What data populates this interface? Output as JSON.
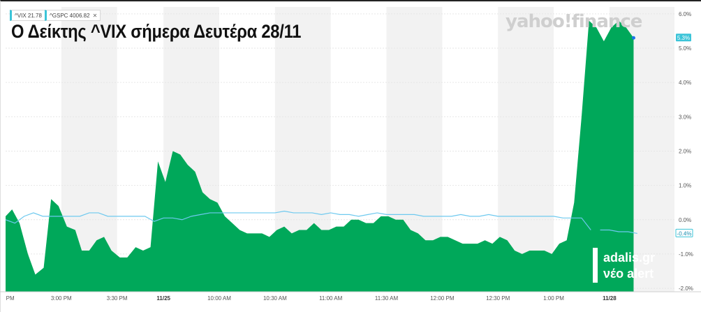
{
  "headline": "Ο Δείκτης ^VIX σήμερα Δευτέρα 28/11",
  "watermark": "yahoo!finance",
  "chips": [
    {
      "label": "^VIX 21.78",
      "color": "#3bc4d8",
      "closable": false
    },
    {
      "label": "^GSPC 4006.82",
      "color": "#5bc8e8",
      "closable": true
    }
  ],
  "brand": {
    "line1": "adalis.gr",
    "line2": "νέο alert"
  },
  "colors": {
    "area": "#00a85a",
    "line": "#6ec9ef",
    "band": "#f2f2f2",
    "vix_tag": "#3bc4d8",
    "gspc_tag": "#3bc4d8"
  },
  "chart_data": {
    "type": "area",
    "y_tick_labels": [
      "6.0%",
      "5.0%",
      "4.0%",
      "3.0%",
      "2.0%",
      "1.0%",
      "0.0%",
      "-1.0%",
      "-2.0%"
    ],
    "y_ticks": [
      6,
      5,
      4,
      3,
      2,
      1,
      0,
      -1,
      -2
    ],
    "ylim": [
      -2.1,
      6.2
    ],
    "x_tick_labels": [
      {
        "label": "PM",
        "x": 0.5,
        "bold": false
      },
      {
        "label": "3:00 PM",
        "x": 6,
        "bold": false
      },
      {
        "label": "3:30 PM",
        "x": 12,
        "bold": false
      },
      {
        "label": "11/25",
        "x": 17,
        "bold": true
      },
      {
        "label": "10:00 AM",
        "x": 23,
        "bold": false
      },
      {
        "label": "10:30 AM",
        "x": 29,
        "bold": false
      },
      {
        "label": "11:00 AM",
        "x": 35,
        "bold": false
      },
      {
        "label": "11:30 AM",
        "x": 41,
        "bold": false
      },
      {
        "label": "12:00 PM",
        "x": 47,
        "bold": false
      },
      {
        "label": "12:30 PM",
        "x": 53,
        "bold": false
      },
      {
        "label": "1:00 PM",
        "x": 59,
        "bold": false
      },
      {
        "label": "11/28",
        "x": 65,
        "bold": true
      }
    ],
    "xlim": [
      0,
      72
    ],
    "series": [
      {
        "name": "^VIX",
        "end_label": "5.3%",
        "points": [
          [
            0,
            0.1
          ],
          [
            0.7,
            0.3
          ],
          [
            1.5,
            -0.1
          ],
          [
            2.4,
            -1.0
          ],
          [
            3.2,
            -1.6
          ],
          [
            4.1,
            -1.4
          ],
          [
            4.9,
            0.6
          ],
          [
            5.7,
            0.4
          ],
          [
            6.6,
            -0.2
          ],
          [
            7.5,
            -0.3
          ],
          [
            8.2,
            -0.9
          ],
          [
            9.0,
            -0.9
          ],
          [
            9.8,
            -0.6
          ],
          [
            10.6,
            -0.5
          ],
          [
            11.4,
            -0.9
          ],
          [
            12.3,
            -1.1
          ],
          [
            13.1,
            -1.1
          ],
          [
            14.0,
            -0.8
          ],
          [
            14.8,
            -0.9
          ],
          [
            15.6,
            -0.8
          ],
          [
            16.4,
            1.7
          ],
          [
            17.2,
            1.1
          ],
          [
            18.0,
            2.0
          ],
          [
            18.8,
            1.9
          ],
          [
            19.6,
            1.6
          ],
          [
            20.4,
            1.4
          ],
          [
            21.2,
            0.8
          ],
          [
            22.0,
            0.6
          ],
          [
            22.8,
            0.5
          ],
          [
            23.6,
            0.1
          ],
          [
            24.4,
            -0.1
          ],
          [
            25.2,
            -0.3
          ],
          [
            26.0,
            -0.4
          ],
          [
            26.8,
            -0.4
          ],
          [
            27.6,
            -0.4
          ],
          [
            28.4,
            -0.5
          ],
          [
            29.2,
            -0.3
          ],
          [
            30.0,
            -0.2
          ],
          [
            30.8,
            -0.4
          ],
          [
            31.6,
            -0.3
          ],
          [
            32.4,
            -0.3
          ],
          [
            33.2,
            -0.1
          ],
          [
            34.0,
            -0.3
          ],
          [
            34.8,
            -0.3
          ],
          [
            35.6,
            -0.2
          ],
          [
            36.4,
            -0.2
          ],
          [
            37.2,
            -0.0
          ],
          [
            38.0,
            -0.0
          ],
          [
            38.8,
            -0.1
          ],
          [
            39.6,
            -0.1
          ],
          [
            40.4,
            0.1
          ],
          [
            41.2,
            0.1
          ],
          [
            42.0,
            0.0
          ],
          [
            42.8,
            0.0
          ],
          [
            43.6,
            -0.3
          ],
          [
            44.4,
            -0.4
          ],
          [
            45.2,
            -0.6
          ],
          [
            46.0,
            -0.6
          ],
          [
            46.8,
            -0.5
          ],
          [
            47.6,
            -0.5
          ],
          [
            48.4,
            -0.6
          ],
          [
            49.2,
            -0.7
          ],
          [
            50.0,
            -0.7
          ],
          [
            50.8,
            -0.7
          ],
          [
            51.6,
            -0.6
          ],
          [
            52.4,
            -0.7
          ],
          [
            53.2,
            -0.5
          ],
          [
            54.0,
            -0.6
          ],
          [
            54.8,
            -0.9
          ],
          [
            55.6,
            -1.0
          ],
          [
            56.4,
            -0.9
          ],
          [
            57.2,
            -0.9
          ],
          [
            58.0,
            -0.9
          ],
          [
            58.8,
            -1.0
          ],
          [
            59.6,
            -0.7
          ],
          [
            60.4,
            -0.6
          ],
          [
            61.2,
            0.5
          ],
          [
            62.0,
            3.0
          ],
          [
            62.8,
            5.8
          ],
          [
            63.6,
            5.6
          ],
          [
            64.4,
            5.2
          ],
          [
            65.2,
            5.6
          ],
          [
            66.0,
            5.8
          ],
          [
            66.8,
            5.6
          ],
          [
            67.6,
            5.3
          ]
        ]
      },
      {
        "name": "^GSPC",
        "end_label": "-0.4%",
        "points": [
          [
            0,
            0.0
          ],
          [
            1,
            -0.1
          ],
          [
            2,
            0.1
          ],
          [
            3,
            0.2
          ],
          [
            4,
            0.1
          ],
          [
            5,
            0.1
          ],
          [
            6,
            0.1
          ],
          [
            7,
            0.1
          ],
          [
            8,
            0.1
          ],
          [
            9,
            0.2
          ],
          [
            10,
            0.2
          ],
          [
            11,
            0.1
          ],
          [
            12,
            0.1
          ],
          [
            13,
            0.1
          ],
          [
            14,
            0.1
          ],
          [
            15,
            0.1
          ],
          [
            16,
            -0.05
          ],
          [
            17,
            0.05
          ],
          [
            18,
            0.05
          ],
          [
            19,
            0.0
          ],
          [
            20,
            0.1
          ],
          [
            21,
            0.15
          ],
          [
            22,
            0.2
          ],
          [
            23,
            0.2
          ],
          [
            24,
            0.2
          ],
          [
            25,
            0.2
          ],
          [
            26,
            0.2
          ],
          [
            27,
            0.2
          ],
          [
            28,
            0.2
          ],
          [
            29,
            0.2
          ],
          [
            30,
            0.25
          ],
          [
            31,
            0.2
          ],
          [
            32,
            0.2
          ],
          [
            33,
            0.2
          ],
          [
            34,
            0.15
          ],
          [
            35,
            0.2
          ],
          [
            36,
            0.15
          ],
          [
            37,
            0.15
          ],
          [
            38,
            0.1
          ],
          [
            39,
            0.15
          ],
          [
            40,
            0.2
          ],
          [
            41,
            0.15
          ],
          [
            42,
            0.15
          ],
          [
            43,
            0.15
          ],
          [
            44,
            0.15
          ],
          [
            45,
            0.1
          ],
          [
            46,
            0.1
          ],
          [
            47,
            0.1
          ],
          [
            48,
            0.1
          ],
          [
            49,
            0.15
          ],
          [
            50,
            0.1
          ],
          [
            51,
            0.1
          ],
          [
            52,
            0.15
          ],
          [
            53,
            0.1
          ],
          [
            54,
            0.1
          ],
          [
            55,
            0.1
          ],
          [
            56,
            0.1
          ],
          [
            57,
            0.1
          ],
          [
            58,
            0.1
          ],
          [
            59,
            0.1
          ],
          [
            60,
            0.05
          ],
          [
            61,
            0.05
          ],
          [
            62,
            0.05
          ],
          [
            63,
            -0.3
          ],
          [
            null,
            null
          ],
          [
            64,
            -0.3
          ],
          [
            65,
            -0.3
          ],
          [
            66,
            -0.35
          ],
          [
            67,
            -0.35
          ],
          [
            68,
            -0.4
          ]
        ]
      }
    ]
  }
}
